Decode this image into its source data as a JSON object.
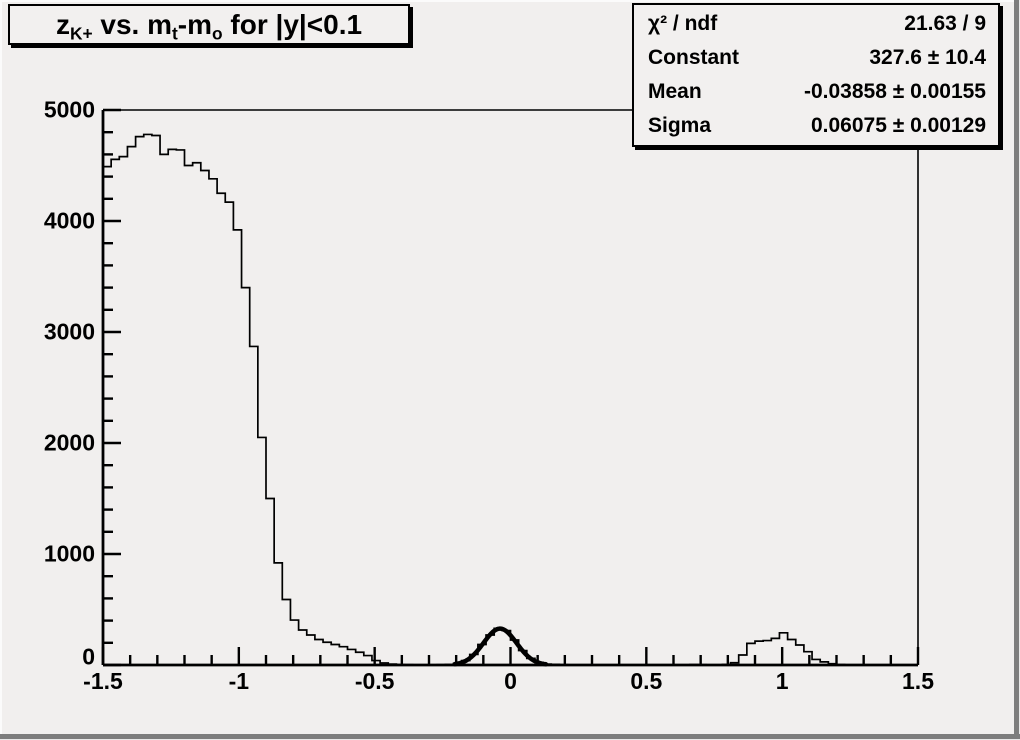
{
  "colors": {
    "canvas_bg": "#f1efee",
    "box_bg": "#f2f0ef",
    "line": "#000000",
    "shadow_edge": "#7d7d7d",
    "highlight_edge": "#fbfbfb"
  },
  "title_box": {
    "segments": [
      {
        "t": "z"
      },
      {
        "t": "K+",
        "sub": true
      },
      {
        "t": " vs. m"
      },
      {
        "t": "t",
        "sub": true
      },
      {
        "t": "-m"
      },
      {
        "t": "o",
        "sub": true
      },
      {
        "t": " for |y|<0.1"
      }
    ]
  },
  "stats_box": {
    "rows": [
      {
        "label": "χ² / ndf",
        "value": "21.63 / 9"
      },
      {
        "label": "Constant",
        "value": "327.6 ± 10.4"
      },
      {
        "label": "Mean",
        "value": "-0.03858 ± 0.00155"
      },
      {
        "label": "Sigma",
        "value": "0.06075 ± 0.00129"
      }
    ]
  },
  "chart_data": {
    "type": "bar",
    "subtype": "step-histogram",
    "title": "z_K+ vs. m_t-m_o for |y|<0.1",
    "xlabel": "",
    "ylabel": "",
    "xlim": [
      -1.5,
      1.5
    ],
    "ylim": [
      0,
      5000
    ],
    "grid": false,
    "legend_position": "none",
    "x_tick_values": [
      -1.5,
      -1,
      -0.5,
      0,
      0.5,
      1,
      1.5
    ],
    "x_tick_labels": [
      "-1.5",
      "-1",
      "-0.5",
      "0",
      "0.5",
      "1",
      "1.5"
    ],
    "y_tick_values": [
      0,
      1000,
      2000,
      3000,
      4000,
      5000
    ],
    "y_tick_labels": [
      "0",
      "1000",
      "2000",
      "3000",
      "4000",
      "5000"
    ],
    "x_minor_step": 0.1,
    "y_minor_step": 200,
    "bins": {
      "start": -1.5,
      "width": 0.03,
      "values": [
        4490,
        4555,
        4580,
        4670,
        4760,
        4780,
        4770,
        4600,
        4645,
        4640,
        4500,
        4525,
        4455,
        4380,
        4250,
        4170,
        3920,
        3400,
        2870,
        2050,
        1500,
        920,
        590,
        405,
        315,
        270,
        230,
        205,
        185,
        165,
        140,
        115,
        85,
        40,
        18,
        8,
        4,
        2,
        1,
        1,
        1,
        2,
        5,
        14,
        40,
        95,
        185,
        270,
        330,
        310,
        225,
        130,
        60,
        22,
        8,
        6,
        3,
        0,
        0,
        0,
        0,
        0,
        0,
        0,
        0,
        0,
        0,
        0,
        0,
        0,
        0,
        0,
        4,
        2,
        0,
        0,
        5,
        20,
        90,
        195,
        215,
        220,
        240,
        290,
        230,
        180,
        120,
        50,
        28,
        12,
        4,
        0,
        0,
        0,
        0,
        0,
        0,
        0,
        0,
        0
      ]
    },
    "fit_curve": {
      "type": "gaussian",
      "constant": 327.6,
      "mean": -0.03858,
      "sigma": 0.06075,
      "draw_range": [
        -0.205,
        0.13
      ]
    }
  }
}
